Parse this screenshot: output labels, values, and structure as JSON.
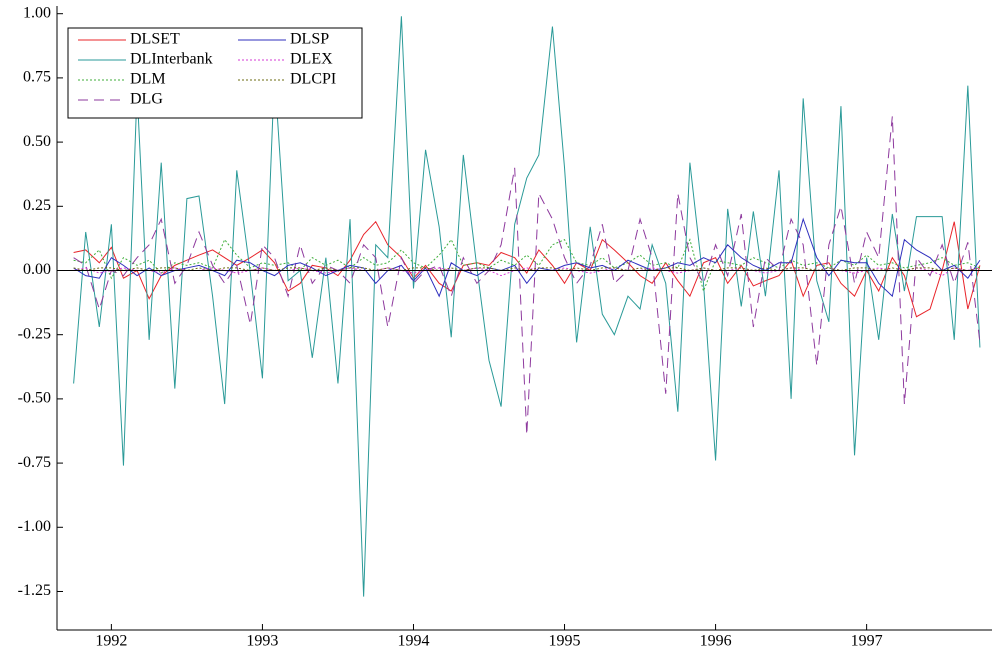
{
  "chart_data": {
    "type": "line",
    "x": [
      1991.75,
      1991.83,
      1991.92,
      1992.0,
      1992.08,
      1992.17,
      1992.25,
      1992.33,
      1992.42,
      1992.5,
      1992.58,
      1992.67,
      1992.75,
      1992.83,
      1992.92,
      1993,
      1993.08,
      1993.17,
      1993.25,
      1993.33,
      1993.42,
      1993.5,
      1993.58,
      1993.67,
      1993.75,
      1993.83,
      1993.92,
      1994,
      1994.08,
      1994.17,
      1994.25,
      1994.33,
      1994.42,
      1994.5,
      1994.58,
      1994.67,
      1994.75,
      1994.83,
      1994.92,
      1995,
      1995.08,
      1995.17,
      1995.25,
      1995.33,
      1995.42,
      1995.5,
      1995.58,
      1995.67,
      1995.75,
      1995.83,
      1995.92,
      1996,
      1996.08,
      1996.17,
      1996.25,
      1996.33,
      1996.42,
      1996.5,
      1996.58,
      1996.67,
      1996.75,
      1996.83,
      1996.92,
      1997,
      1997.08,
      1997.17,
      1997.25,
      1997.33,
      1997.42,
      1997.5,
      1997.58,
      1997.67,
      1997.75
    ],
    "series": [
      {
        "name": "DLSET",
        "color": "#e8242a",
        "dash": "solid",
        "values": [
          0.07,
          0.08,
          0.03,
          0.09,
          -0.03,
          0.0,
          -0.11,
          -0.02,
          0.02,
          0.04,
          0.06,
          0.08,
          0.05,
          0.02,
          0.05,
          0.08,
          0.03,
          -0.08,
          -0.05,
          0.02,
          0.01,
          -0.02,
          0.04,
          0.14,
          0.19,
          0.1,
          0.05,
          -0.03,
          0.02,
          -0.05,
          -0.08,
          0.02,
          0.03,
          0.02,
          0.07,
          0.05,
          -0.01,
          0.08,
          0.02,
          -0.05,
          0.03,
          0.0,
          0.12,
          0.08,
          0.03,
          -0.02,
          -0.05,
          0.03,
          -0.04,
          -0.1,
          0.03,
          0.05,
          -0.05,
          0.02,
          -0.06,
          -0.04,
          -0.02,
          0.04,
          -0.1,
          0.02,
          0.03,
          -0.05,
          -0.1,
          0.0,
          -0.08,
          0.05,
          -0.02,
          -0.18,
          -0.15,
          0.0,
          0.19,
          -0.15,
          0.02
        ]
      },
      {
        "name": "DLInterbank",
        "color": "#2a9a98",
        "dash": "solid",
        "values": [
          -0.44,
          0.15,
          -0.22,
          0.18,
          -0.76,
          0.7,
          -0.27,
          0.42,
          -0.46,
          0.28,
          0.29,
          -0.1,
          -0.52,
          0.39,
          -0.01,
          -0.42,
          0.77,
          -0.04,
          0.0,
          -0.34,
          0.05,
          -0.44,
          0.2,
          -1.27,
          0.1,
          0.05,
          0.99,
          -0.07,
          0.47,
          0.17,
          -0.26,
          0.45,
          0.01,
          -0.35,
          -0.53,
          0.18,
          0.36,
          0.45,
          0.95,
          0.4,
          -0.28,
          0.17,
          -0.17,
          -0.25,
          -0.1,
          -0.15,
          0.1,
          -0.05,
          -0.55,
          0.42,
          -0.05,
          -0.74,
          0.24,
          -0.14,
          0.23,
          -0.1,
          0.39,
          -0.5,
          0.67,
          -0.04,
          -0.2,
          0.64,
          -0.72,
          0.05,
          -0.27,
          0.22,
          -0.08,
          0.21,
          0.21,
          0.21,
          -0.27,
          0.72,
          -0.3
        ]
      },
      {
        "name": "DLM",
        "color": "#3fae3a",
        "dash": "dotted",
        "values": [
          0.04,
          0.03,
          0.08,
          -0.03,
          0.05,
          0.02,
          0.04,
          -0.01,
          0.03,
          0.02,
          0.03,
          0.01,
          0.12,
          0.06,
          0.01,
          0.03,
          0.02,
          0.03,
          0.0,
          0.05,
          0.02,
          0.04,
          0.01,
          0.05,
          0.02,
          0.03,
          0.08,
          0.03,
          0.01,
          0.06,
          0.12,
          0.02,
          0.03,
          0.01,
          0.04,
          0.02,
          0.06,
          0.02,
          0.1,
          0.12,
          0.03,
          0.02,
          0.05,
          0.01,
          0.03,
          0.06,
          0.02,
          0.03,
          0.01,
          0.12,
          -0.08,
          0.04,
          0.03,
          0.02,
          0.05,
          0.03,
          0.01,
          0.04,
          0.02,
          0.03,
          0.01,
          0.04,
          0.02,
          0.06,
          0.02,
          0.03,
          0.01,
          0.02,
          0.03,
          0.05,
          0.02,
          0.03,
          0.01
        ]
      },
      {
        "name": "DLG",
        "color": "#8e3a9e",
        "dash": "dashed",
        "values": [
          0.05,
          0.02,
          -0.15,
          0.0,
          -0.02,
          0.05,
          0.1,
          0.2,
          -0.05,
          0.02,
          0.15,
          0.02,
          -0.05,
          0.02,
          -0.21,
          0.1,
          0.05,
          -0.1,
          0.1,
          -0.05,
          0.02,
          0.0,
          -0.05,
          0.1,
          0.05,
          -0.22,
          0.05,
          -0.05,
          0.0,
          0.02,
          -0.1,
          0.05,
          -0.05,
          0.0,
          0.1,
          0.4,
          -0.64,
          0.3,
          0.2,
          0.05,
          -0.05,
          0.02,
          0.18,
          -0.05,
          0.0,
          0.2,
          0.05,
          -0.48,
          0.3,
          0.05,
          -0.05,
          0.1,
          -0.02,
          0.22,
          -0.22,
          0.05,
          0.0,
          0.2,
          0.1,
          -0.37,
          0.1,
          0.25,
          -0.05,
          0.15,
          0.05,
          0.6,
          -0.52,
          0.05,
          -0.02,
          0.1,
          -0.05,
          0.11,
          -0.28
        ]
      },
      {
        "name": "DLSP",
        "color": "#2f2fbe",
        "dash": "solid",
        "values": [
          0.01,
          -0.02,
          -0.03,
          0.05,
          0.02,
          -0.02,
          0.01,
          -0.02,
          0.0,
          0.01,
          0.02,
          0.0,
          -0.02,
          0.04,
          0.03,
          0.0,
          -0.02,
          0.02,
          0.03,
          0.01,
          -0.02,
          0.0,
          0.02,
          0.01,
          -0.05,
          0.0,
          0.02,
          -0.04,
          0.01,
          -0.1,
          0.03,
          0.0,
          -0.02,
          0.01,
          0.0,
          0.02,
          -0.05,
          0.01,
          0.0,
          0.02,
          0.03,
          0.01,
          0.02,
          0.0,
          0.04,
          0.02,
          0.0,
          0.01,
          0.03,
          0.02,
          0.05,
          0.03,
          0.1,
          0.05,
          0.02,
          0.0,
          0.03,
          0.03,
          0.2,
          0.05,
          -0.02,
          0.04,
          0.03,
          0.03,
          -0.05,
          -0.1,
          0.12,
          0.08,
          0.05,
          0.0,
          0.02,
          -0.03,
          0.04
        ]
      },
      {
        "name": "DLEX",
        "color": "#d63ad6",
        "dash": "dotted",
        "values": [
          0.0,
          0.01,
          -0.01,
          0.0,
          0.01,
          0.0,
          0.0,
          -0.01,
          0.01,
          0.0,
          0.0,
          0.01,
          0.0,
          -0.01,
          0.0,
          0.01,
          0.0,
          0.0,
          0.01,
          0.0,
          -0.01,
          0.0,
          0.01,
          0.0,
          0.0,
          0.01,
          0.0,
          -0.01,
          0.0,
          0.01,
          0.0,
          0.0,
          0.01,
          0.0,
          -0.02,
          0.0,
          0.01,
          0.0,
          0.0,
          0.01,
          0.0,
          -0.01,
          0.0,
          0.01,
          0.0,
          0.0,
          0.01,
          0.0,
          -0.01,
          0.0,
          0.01,
          0.0,
          0.0,
          0.01,
          0.0,
          -0.01,
          0.0,
          0.01,
          0.0,
          0.0,
          0.01,
          0.0,
          -0.01,
          0.0,
          0.01,
          0.0,
          0.0,
          0.01,
          0.0,
          -0.02,
          0.01,
          0.0,
          0.01
        ]
      },
      {
        "name": "DLCPI",
        "color": "#6b6b10",
        "dash": "dotted",
        "values": [
          0.01,
          0.0,
          0.01,
          0.01,
          0.0,
          0.01,
          0.0,
          0.01,
          0.01,
          0.0,
          0.01,
          0.0,
          0.01,
          0.01,
          0.0,
          0.01,
          0.0,
          0.01,
          0.01,
          0.0,
          0.01,
          0.0,
          0.01,
          0.01,
          0.0,
          0.01,
          0.0,
          0.01,
          0.01,
          0.0,
          0.01,
          0.0,
          0.01,
          0.01,
          0.0,
          0.01,
          0.0,
          0.01,
          0.01,
          0.0,
          0.01,
          0.0,
          0.01,
          0.01,
          0.0,
          0.01,
          0.0,
          0.01,
          0.01,
          0.0,
          0.01,
          0.0,
          0.01,
          0.01,
          0.0,
          0.01,
          0.0,
          0.01,
          0.01,
          0.0,
          0.01,
          0.0,
          0.01,
          0.01,
          0.0,
          0.01,
          0.0,
          0.01,
          0.01,
          0.0,
          0.01,
          0.0,
          0.01
        ]
      }
    ],
    "xlim": [
      1991.64,
      1997.83
    ],
    "xticks": [
      1992,
      1993,
      1994,
      1995,
      1996,
      1997
    ],
    "ylim": [
      -1.4,
      1.03
    ],
    "yticks": [
      {
        "value": 1,
        "label": "1.00"
      },
      {
        "value": 0.75,
        "label": "0.75"
      },
      {
        "value": 0.5,
        "label": "0.50"
      },
      {
        "value": 0.25,
        "label": "0.25"
      },
      {
        "value": 0,
        "label": "0.00"
      },
      {
        "value": -0.25,
        "label": "-0.25"
      },
      {
        "value": -0.5,
        "label": "-0.50"
      },
      {
        "value": -0.75,
        "label": "-0.75"
      },
      {
        "value": -1,
        "label": "-1.00"
      },
      {
        "value": -1.25,
        "label": "-1.25"
      }
    ],
    "legend": "top-left",
    "zero_line": true
  }
}
